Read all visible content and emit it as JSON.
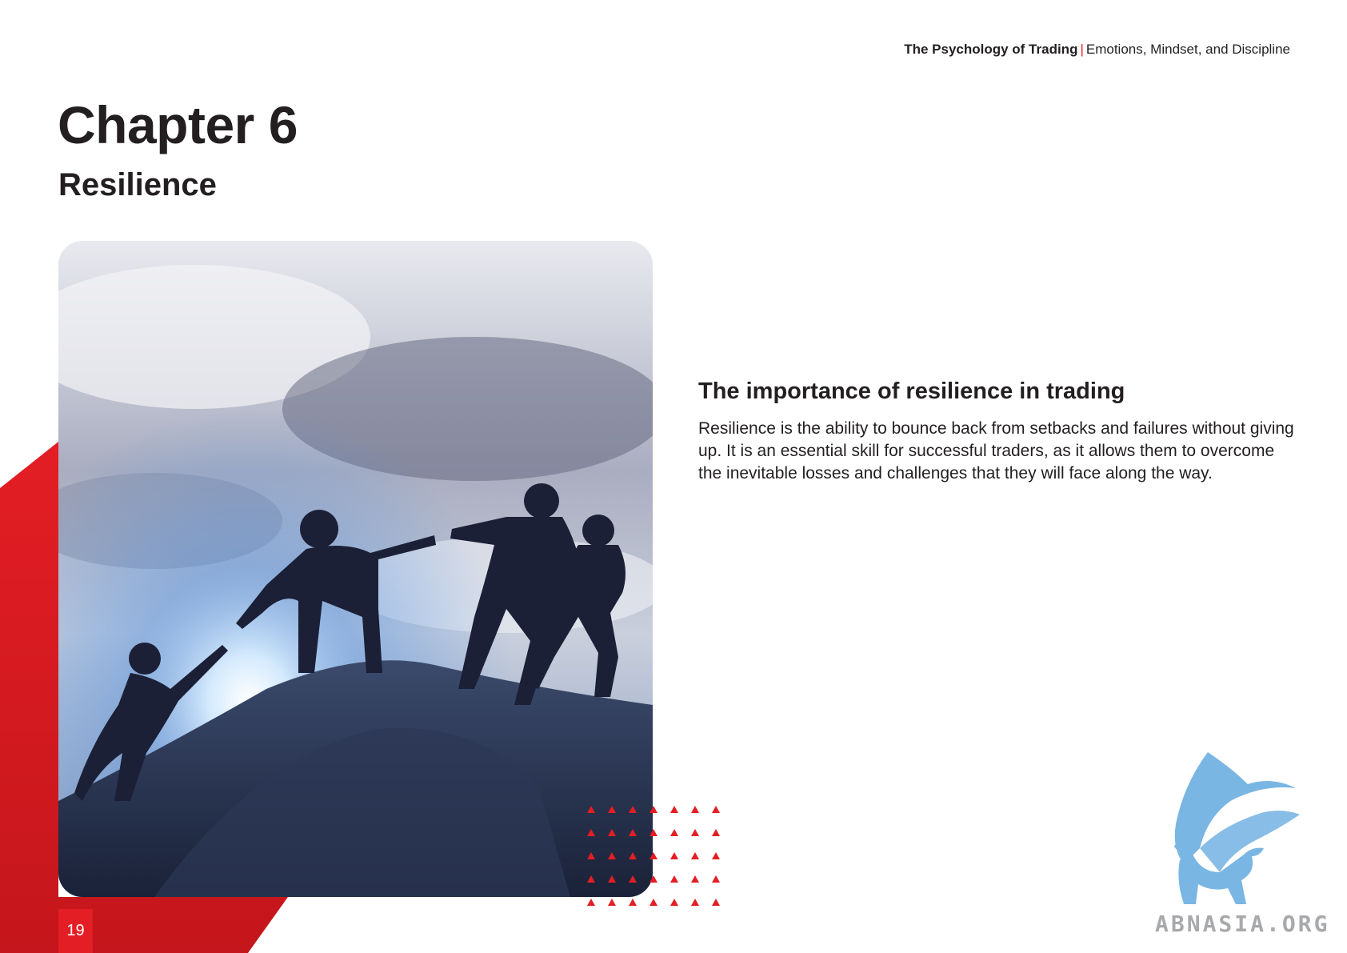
{
  "header": {
    "book_title": "The Psychology of Trading",
    "separator": "|",
    "book_subtitle": "Emotions, Mindset, and Discipline"
  },
  "chapter": {
    "title": "Chapter 6",
    "subtitle": "Resilience"
  },
  "section": {
    "heading": "The importance of resilience in trading",
    "body": "Resilience is the ability to bounce back from setbacks and failures without giving up. It is an essential skill for successful traders, as it allows them to overcome the inevitable losses and challenges that they will face along the way."
  },
  "footer": {
    "page_number": "19",
    "logo_text": "ABNASIA.ORG"
  },
  "colors": {
    "accent_red": "#e31e24",
    "text_dark": "#231f20",
    "logo_blue": "#7ab6e3",
    "logo_gray": "#a7a9ac"
  },
  "icons": {
    "logo": "griffin-logo-icon",
    "photo": "team-climbing-photo"
  }
}
